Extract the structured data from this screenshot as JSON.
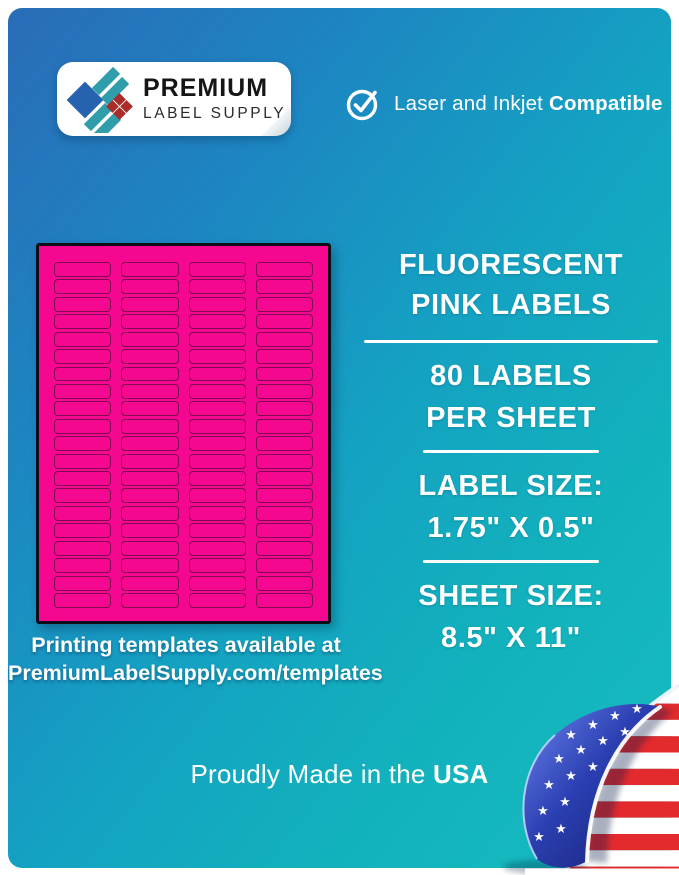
{
  "brand": {
    "logo_line1": "PREMIUM",
    "logo_line2": "LABEL SUPPLY"
  },
  "header": {
    "compatibility_regular": "Laser and Inkjet ",
    "compatibility_bold": "Compatible"
  },
  "sheet": {
    "columns": 4,
    "rows": 20,
    "caption_line1": "Printing templates available at",
    "caption_line2": "PremiumLabelSupply.com/templates"
  },
  "info": {
    "title_line1": "FLUORESCENT",
    "title_line2": "PINK LABELS",
    "count_line1": "80 LABELS",
    "count_line2": "PER SHEET",
    "label_size_label": "LABEL SIZE:",
    "label_size_value": "1.75\" X 0.5\"",
    "sheet_size_label": "SHEET SIZE:",
    "sheet_size_value": "8.5\" X 11\""
  },
  "footer": {
    "made_in_regular": "Proudly Made in the ",
    "made_in_bold": "USA"
  },
  "flag": {
    "star_glyph": "★",
    "stripe_red": "#e32b2e",
    "stripe_white": "#ffffff",
    "canton_blue_light": "#5d76e6",
    "canton_blue_dark": "#131d6b"
  },
  "colors": {
    "card_gradient_start": "#2a6cb7",
    "card_gradient_end": "#18bcc1",
    "sheet_pink": "#f5078f",
    "label_outline": "#7f0a50",
    "text_white": "#ffffff"
  }
}
